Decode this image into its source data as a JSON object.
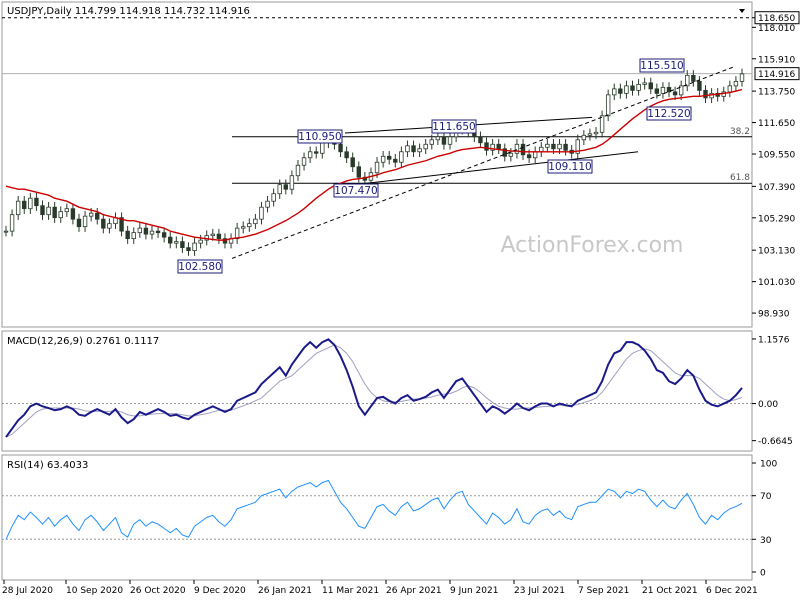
{
  "chart_data": [
    {
      "type": "candlestick",
      "panel": "price",
      "title": "USDJPY,Daily  114.799 114.918 114.732 114.916",
      "watermark": "ActionForex.com",
      "ylim": [
        98.0,
        119.7
      ],
      "y_ticks": [
        "118.650",
        "118.010",
        "115.910",
        "113.750",
        "111.650",
        "109.550",
        "107.390",
        "105.290",
        "103.130",
        "101.030",
        "98.930"
      ],
      "current_price": "114.916",
      "dashed_level": "118.650",
      "x_tick_labels": [
        "28 Jul 2020",
        "10 Sep 2020",
        "26 Oct 2020",
        "9 Dec 2020",
        "26 Jan 2021",
        "11 Mar 2021",
        "26 Apr 2021",
        "9 Jun 2021",
        "23 Jul 2021",
        "7 Sep 2021",
        "21 Oct 2021",
        "6 Dec 2021"
      ],
      "series": [
        {
          "name": "close",
          "values": [
            104.4,
            105.5,
            106.4,
            105.9,
            106.6,
            106.1,
            105.5,
            106.0,
            105.3,
            105.7,
            105.9,
            105.2,
            104.7,
            105.4,
            105.6,
            105.2,
            104.6,
            104.9,
            105.3,
            104.4,
            103.9,
            104.3,
            104.6,
            104.2,
            104.4,
            104.3,
            104.0,
            103.6,
            103.7,
            103.3,
            103.1,
            103.6,
            103.8,
            104.1,
            104.2,
            103.9,
            103.6,
            103.9,
            104.6,
            104.7,
            104.9,
            105.2,
            106.0,
            106.4,
            106.9,
            107.5,
            107.2,
            108.1,
            108.8,
            109.3,
            109.7,
            109.6,
            110.3,
            110.7,
            110.2,
            109.7,
            109.3,
            108.7,
            108.0,
            107.8,
            108.3,
            109.0,
            109.4,
            109.2,
            109.0,
            109.7,
            110.1,
            109.7,
            109.9,
            110.2,
            110.5,
            110.7,
            110.2,
            110.7,
            111.2,
            111.5,
            111.0,
            110.7,
            110.3,
            109.8,
            110.2,
            109.9,
            109.4,
            109.6,
            110.2,
            109.5,
            109.3,
            109.7,
            110.0,
            110.2,
            109.9,
            110.2,
            109.8,
            109.6,
            110.5,
            110.8,
            110.9,
            111.0,
            112.1,
            113.5,
            113.9,
            113.6,
            114.1,
            113.8,
            114.2,
            114.3,
            113.9,
            113.6,
            114.0,
            113.7,
            113.5,
            114.1,
            114.8,
            114.4,
            113.8,
            113.3,
            113.6,
            113.4,
            113.7,
            114.1,
            114.4,
            114.9
          ]
        },
        {
          "name": "SMA",
          "values": [
            107.4,
            107.3,
            107.2,
            107.2,
            107.1,
            107.0,
            106.9,
            106.8,
            106.6,
            106.5,
            106.4,
            106.2,
            106.0,
            105.9,
            105.8,
            105.7,
            105.5,
            105.4,
            105.3,
            105.2,
            105.1,
            105.1,
            105.0,
            104.9,
            104.8,
            104.7,
            104.6,
            104.4,
            104.3,
            104.2,
            104.1,
            104.0,
            103.95,
            103.9,
            103.85,
            103.8,
            103.8,
            103.9,
            103.95,
            104.0,
            104.1,
            104.2,
            104.35,
            104.5,
            104.7,
            104.9,
            105.1,
            105.35,
            105.6,
            105.9,
            106.25,
            106.6,
            106.9,
            107.2,
            107.45,
            107.6,
            107.75,
            107.85,
            107.9,
            107.95,
            108.05,
            108.15,
            108.3,
            108.4,
            108.5,
            108.65,
            108.8,
            108.9,
            109.0,
            109.1,
            109.25,
            109.4,
            109.5,
            109.6,
            109.75,
            109.85,
            109.9,
            109.95,
            110.0,
            109.95,
            109.9,
            109.85,
            109.8,
            109.75,
            109.75,
            109.7,
            109.7,
            109.7,
            109.7,
            109.7,
            109.7,
            109.7,
            109.7,
            109.7,
            109.75,
            109.8,
            109.9,
            110.0,
            110.2,
            110.5,
            110.85,
            111.2,
            111.55,
            111.9,
            112.2,
            112.5,
            112.75,
            112.95,
            113.1,
            113.2,
            113.25,
            113.3,
            113.35,
            113.4,
            113.4,
            113.45,
            113.5,
            113.55,
            113.6,
            113.65,
            113.75,
            113.85
          ]
        }
      ],
      "annotations": [
        "110.950",
        "111.650",
        "107.470",
        "102.580",
        "115.510",
        "112.520",
        "109.110"
      ],
      "fib_levels": [
        {
          "label": "38.2",
          "value": 110.7
        },
        {
          "label": "61.8",
          "value": 107.6
        }
      ]
    },
    {
      "type": "line",
      "panel": "macd",
      "title": "MACD(12,26,9)  0.2761 0.1117",
      "ylim": [
        -0.85,
        1.3
      ],
      "y_ticks": [
        "1.1576",
        "0.00",
        "-0.6645"
      ],
      "series": [
        {
          "name": "MACD",
          "values": [
            -0.6,
            -0.45,
            -0.3,
            -0.2,
            -0.05,
            0.0,
            -0.05,
            -0.08,
            -0.12,
            -0.1,
            -0.05,
            -0.1,
            -0.2,
            -0.22,
            -0.15,
            -0.1,
            -0.15,
            -0.2,
            -0.1,
            -0.25,
            -0.35,
            -0.28,
            -0.15,
            -0.2,
            -0.15,
            -0.1,
            -0.15,
            -0.22,
            -0.2,
            -0.25,
            -0.28,
            -0.2,
            -0.15,
            -0.1,
            -0.05,
            -0.1,
            -0.15,
            -0.1,
            0.05,
            0.1,
            0.15,
            0.2,
            0.35,
            0.45,
            0.55,
            0.65,
            0.5,
            0.7,
            0.85,
            1.0,
            1.1,
            1.0,
            1.1,
            1.15,
            1.05,
            0.85,
            0.6,
            0.3,
            -0.05,
            -0.2,
            -0.05,
            0.1,
            0.12,
            0.05,
            0.0,
            0.1,
            0.15,
            0.05,
            0.08,
            0.12,
            0.2,
            0.25,
            0.1,
            0.25,
            0.4,
            0.45,
            0.3,
            0.15,
            0.0,
            -0.15,
            -0.05,
            -0.1,
            -0.18,
            -0.1,
            0.0,
            -0.08,
            -0.12,
            -0.05,
            0.0,
            0.0,
            -0.05,
            0.0,
            -0.03,
            -0.05,
            0.05,
            0.1,
            0.15,
            0.2,
            0.4,
            0.7,
            0.9,
            0.95,
            1.1,
            1.1,
            1.05,
            0.95,
            0.8,
            0.6,
            0.55,
            0.4,
            0.35,
            0.45,
            0.6,
            0.5,
            0.25,
            0.05,
            -0.02,
            -0.05,
            0.0,
            0.05,
            0.15,
            0.28
          ]
        },
        {
          "name": "Signal",
          "values": [
            -0.6,
            -0.55,
            -0.45,
            -0.35,
            -0.25,
            -0.15,
            -0.1,
            -0.08,
            -0.08,
            -0.08,
            -0.08,
            -0.08,
            -0.1,
            -0.13,
            -0.14,
            -0.14,
            -0.14,
            -0.14,
            -0.13,
            -0.15,
            -0.2,
            -0.22,
            -0.22,
            -0.2,
            -0.19,
            -0.18,
            -0.18,
            -0.18,
            -0.18,
            -0.2,
            -0.22,
            -0.22,
            -0.2,
            -0.18,
            -0.15,
            -0.12,
            -0.12,
            -0.12,
            -0.08,
            -0.04,
            0.0,
            0.05,
            0.1,
            0.2,
            0.3,
            0.4,
            0.45,
            0.5,
            0.6,
            0.7,
            0.8,
            0.9,
            0.95,
            1.0,
            1.05,
            1.0,
            0.9,
            0.75,
            0.55,
            0.35,
            0.2,
            0.1,
            0.05,
            0.03,
            0.03,
            0.04,
            0.06,
            0.08,
            0.08,
            0.1,
            0.12,
            0.15,
            0.17,
            0.18,
            0.22,
            0.28,
            0.32,
            0.28,
            0.2,
            0.1,
            0.02,
            -0.05,
            -0.08,
            -0.1,
            -0.1,
            -0.08,
            -0.08,
            -0.07,
            -0.06,
            -0.05,
            -0.04,
            -0.03,
            -0.03,
            -0.03,
            -0.02,
            0.02,
            0.05,
            0.1,
            0.2,
            0.35,
            0.5,
            0.65,
            0.8,
            0.9,
            0.95,
            0.98,
            0.95,
            0.85,
            0.75,
            0.65,
            0.55,
            0.5,
            0.5,
            0.5,
            0.45,
            0.35,
            0.25,
            0.15,
            0.08,
            0.05,
            0.07,
            0.11
          ]
        }
      ],
      "zero_line": true
    },
    {
      "type": "line",
      "panel": "rsi",
      "title": "RSI(14) 63.4033",
      "ylim": [
        0,
        100
      ],
      "y_ticks": [
        "100",
        "70",
        "30",
        "0"
      ],
      "reference_lines": [
        70,
        30
      ],
      "series": [
        {
          "name": "RSI",
          "values": [
            30,
            42,
            52,
            48,
            55,
            50,
            44,
            50,
            42,
            48,
            52,
            44,
            38,
            48,
            52,
            46,
            38,
            44,
            50,
            36,
            32,
            44,
            48,
            42,
            46,
            44,
            40,
            36,
            40,
            34,
            32,
            42,
            46,
            50,
            52,
            46,
            42,
            48,
            58,
            60,
            62,
            64,
            70,
            72,
            74,
            76,
            68,
            74,
            78,
            80,
            82,
            78,
            82,
            84,
            74,
            64,
            58,
            50,
            42,
            40,
            50,
            60,
            62,
            56,
            52,
            60,
            64,
            56,
            58,
            62,
            66,
            68,
            58,
            66,
            72,
            74,
            62,
            56,
            50,
            44,
            54,
            50,
            44,
            48,
            58,
            46,
            44,
            52,
            56,
            58,
            52,
            56,
            50,
            48,
            60,
            62,
            64,
            64,
            70,
            76,
            74,
            68,
            74,
            72,
            76,
            74,
            66,
            60,
            66,
            60,
            58,
            66,
            72,
            62,
            50,
            44,
            52,
            48,
            54,
            58,
            60,
            63
          ]
        }
      ]
    }
  ]
}
